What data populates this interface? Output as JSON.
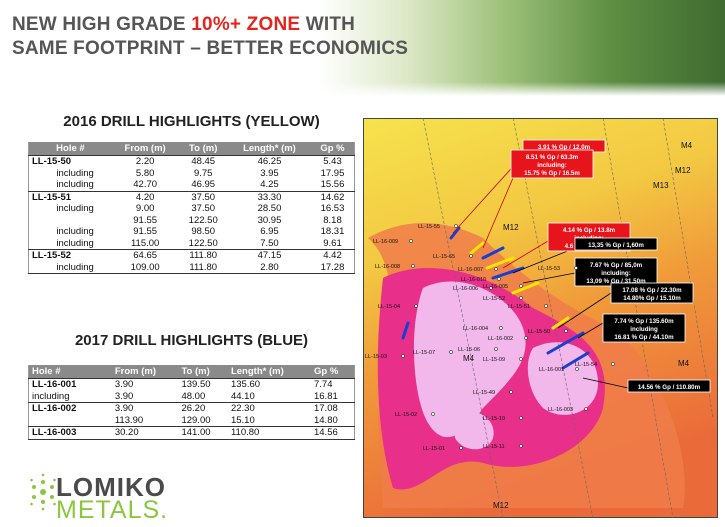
{
  "header": {
    "title_line1_a": "NEW HIGH GRADE ",
    "title_line1_b": "10%+ ZONE",
    "title_line1_c": " WITH",
    "title_line2": "SAME FOOTPRINT – BETTER ECONOMICS"
  },
  "table_2016": {
    "title": "2016 DRILL HIGHLIGHTS (YELLOW)",
    "header": [
      "Hole #",
      "From (m)",
      "To (m)",
      "Length* (m)",
      "Gp %"
    ],
    "rows": [
      [
        "LL-15-50",
        "2.20",
        "48.45",
        "46.25",
        "5.43"
      ],
      [
        "including",
        "5.80",
        "9.75",
        "3.95",
        "17.95"
      ],
      [
        "including",
        "42.70",
        "46.95",
        "4.25",
        "15.56"
      ],
      [
        "LL-15-51",
        "4.20",
        "37.50",
        "33.30",
        "14.62"
      ],
      [
        "including",
        "9.00",
        "37.50",
        "28.50",
        "16.53"
      ],
      [
        null,
        "91.55",
        "122.50",
        "30.95",
        "8.18"
      ],
      [
        "including",
        "91.55",
        "98.50",
        "6.95",
        "18.31"
      ],
      [
        "including",
        "115.00",
        "122.50",
        "7.50",
        "9.61"
      ],
      [
        "LL-15-52",
        "64.65",
        "111.80",
        "47.15",
        "4.42"
      ],
      [
        "including",
        "109.00",
        "111.80",
        "2.80",
        "17.28"
      ]
    ]
  },
  "table_2017": {
    "title": "2017 DRILL HIGHLIGHTS (BLUE)",
    "header": [
      "Hole #",
      "From (m)",
      "To (m)",
      "Length* (m)",
      "Gp %"
    ],
    "rows": [
      [
        "LL-16-001",
        "3.90",
        "139.50",
        "135.60",
        "7.74"
      ],
      [
        "including",
        "3.90",
        "48.00",
        "44.10",
        "16.81"
      ],
      [
        "LL-16-002",
        "3.90",
        "26.20",
        "22.30",
        "17.08"
      ],
      [
        null,
        "113.90",
        "129.00",
        "15.10",
        "14.80"
      ],
      [
        "LL-16-003",
        "30.20",
        "141.00",
        "110.80",
        "14.56"
      ]
    ]
  },
  "map": {
    "callouts": [
      {
        "lines": [
          "3.91 % Gp / 12.0m"
        ],
        "style": "red"
      },
      {
        "lines": [
          "8.51 % Gp / 63.3m",
          "including:",
          "15.75 % Gp / 16.5m"
        ],
        "style": "red"
      },
      {
        "lines": [
          "4.14 % Gp / 13.8m",
          "including:",
          "4.6 % Gp / 75.0m"
        ],
        "style": "red"
      },
      {
        "lines": [
          "13,35 % Gp / 1,60m"
        ],
        "style": "black"
      },
      {
        "lines": [
          "7.67 % Gp / 85,0m",
          "including:",
          "13,09 % Gp / 31,50m"
        ],
        "style": "black"
      },
      {
        "lines": [
          "17.08 % Gp / 22.30m",
          "14.80% Gp / 15.10m"
        ],
        "style": "black"
      },
      {
        "lines": [
          "7.74 % Gp / 135.60m",
          "including",
          "16.81 % Gp / 44.10m"
        ],
        "style": "black"
      },
      {
        "lines": [
          "14.56 % Gp / 110.80m"
        ],
        "style": "black"
      }
    ],
    "holes": [
      "LL-15-55",
      "LL-16-009",
      "LL-15-65",
      "LL-16-008",
      "LL-16-007",
      "LL-16-010",
      "LL-16-006",
      "LL-16-005",
      "LL-15-53",
      "LL-15-52",
      "LL-15-51",
      "LL-15-04",
      "LL-16-004",
      "LL-16-002",
      "LL-15-06",
      "LL-15-50",
      "LL-15-07",
      "LL-15-09",
      "LL-15-03",
      "LL-16-001",
      "LL-15-54",
      "LL-15-49",
      "LL-16-003",
      "LL-15-02",
      "LL-15-10",
      "LL-15-01",
      "LL-15-11"
    ],
    "zones": [
      "M4",
      "M12",
      "M13",
      "M12",
      "M4",
      "M4",
      "M12"
    ]
  },
  "logo": {
    "line1": "LOMIKO",
    "line2": "METALS."
  }
}
